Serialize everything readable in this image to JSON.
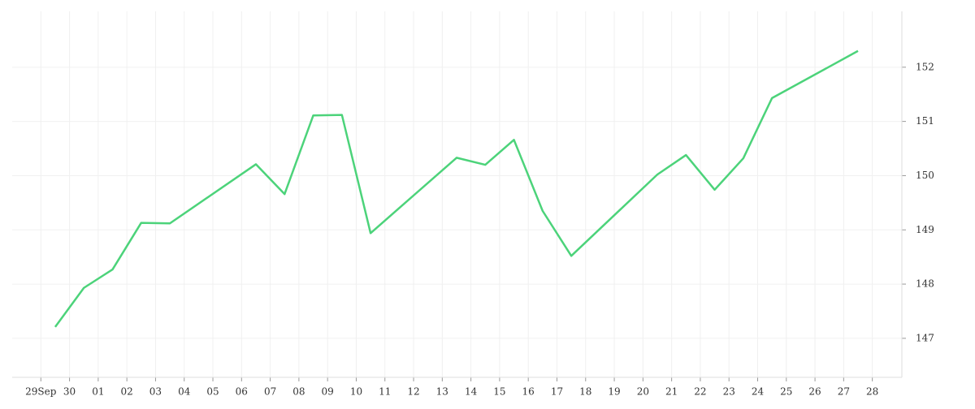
{
  "chart_data": {
    "type": "line",
    "x": [
      0.5,
      1.5,
      2.5,
      3.5,
      4.5,
      7.5,
      8.5,
      9.5,
      10.5,
      11.5,
      14.5,
      15.5,
      16.5,
      17.5,
      18.5,
      21.5,
      22.5,
      23.5,
      24.5,
      25.5,
      28.5
    ],
    "series": [
      {
        "color": "#4cd37a",
        "values": [
          147.21,
          147.93,
          148.27,
          149.13,
          149.12,
          150.21,
          149.66,
          151.11,
          151.12,
          148.94,
          150.33,
          150.2,
          150.66,
          149.35,
          148.52,
          150.02,
          150.38,
          149.74,
          150.32,
          151.43,
          152.3
        ]
      }
    ],
    "xlim": [
      -1,
      30.03
    ],
    "xticks": [
      {
        "value": 0,
        "label": "29Sep"
      },
      {
        "value": 1,
        "label": "30"
      },
      {
        "value": 2,
        "label": "01"
      },
      {
        "value": 3,
        "label": "02"
      },
      {
        "value": 4,
        "label": "03"
      },
      {
        "value": 5,
        "label": "04"
      },
      {
        "value": 6,
        "label": "05"
      },
      {
        "value": 7,
        "label": "06"
      },
      {
        "value": 8,
        "label": "07"
      },
      {
        "value": 9,
        "label": "08"
      },
      {
        "value": 10,
        "label": "09"
      },
      {
        "value": 11,
        "label": "10"
      },
      {
        "value": 12,
        "label": "11"
      },
      {
        "value": 13,
        "label": "12"
      },
      {
        "value": 14,
        "label": "13"
      },
      {
        "value": 15,
        "label": "14"
      },
      {
        "value": 16,
        "label": "15"
      },
      {
        "value": 17,
        "label": "16"
      },
      {
        "value": 18,
        "label": "17"
      },
      {
        "value": 19,
        "label": "18"
      },
      {
        "value": 20,
        "label": "19"
      },
      {
        "value": 21,
        "label": "20"
      },
      {
        "value": 22,
        "label": "21"
      },
      {
        "value": 23,
        "label": "22"
      },
      {
        "value": 24,
        "label": "23"
      },
      {
        "value": 25,
        "label": "24"
      },
      {
        "value": 26,
        "label": "25"
      },
      {
        "value": 27,
        "label": "26"
      },
      {
        "value": 28,
        "label": "27"
      },
      {
        "value": 29,
        "label": "28"
      }
    ],
    "ylim": [
      146.28,
      153.03
    ],
    "yticks": [
      147,
      148,
      149,
      150,
      151,
      152
    ],
    "grid": true
  }
}
